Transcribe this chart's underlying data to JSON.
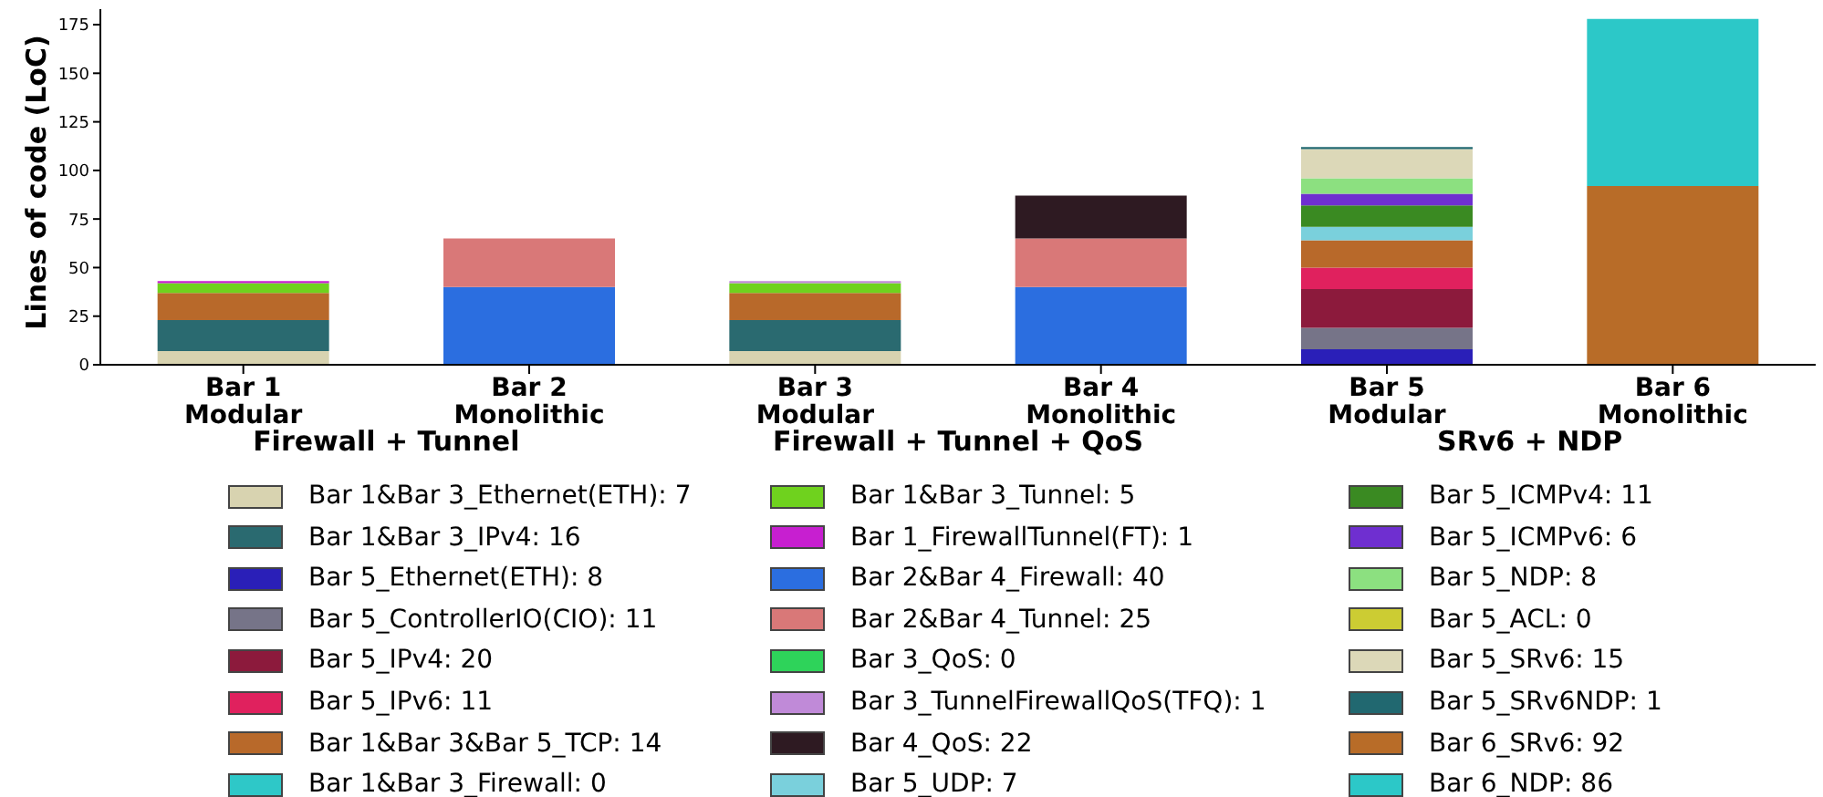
{
  "chart_data": {
    "type": "bar",
    "stacked": true,
    "ylabel": "Lines of code (LoC)",
    "categories": [
      "Bar 1\nModular",
      "Bar 2\nMonolithic",
      "Bar 3\nModular",
      "Bar 4\nMonolithic",
      "Bar 5\nModular",
      "Bar 6\nMonolithic"
    ],
    "annotations": [
      "Firewall + Tunnel",
      "Firewall + Tunnel + QoS",
      "SRv6 + NDP"
    ],
    "ylim": [
      0,
      183
    ],
    "yticks": [
      0,
      25,
      50,
      75,
      100,
      125,
      150,
      175
    ],
    "grid": false,
    "legend": "bottom",
    "series": [
      {
        "name": "Bar 1&Bar 3_Ethernet(ETH): 7",
        "color": "#d8d3b0",
        "values": [
          7,
          null,
          7,
          null,
          null,
          null
        ]
      },
      {
        "name": "Bar 1&Bar 3_IPv4: 16",
        "color": "#2a6a70",
        "values": [
          16,
          null,
          16,
          null,
          null,
          null
        ]
      },
      {
        "name": "Bar 5_Ethernet(ETH): 8",
        "color": "#2a1fb8",
        "values": [
          null,
          null,
          null,
          null,
          8,
          null
        ]
      },
      {
        "name": "Bar 5_ControllerIO(CIO): 11",
        "color": "#767488",
        "values": [
          null,
          null,
          null,
          null,
          11,
          null
        ]
      },
      {
        "name": "Bar 5_IPv4: 20",
        "color": "#8c1a3c",
        "values": [
          null,
          null,
          null,
          null,
          20,
          null
        ]
      },
      {
        "name": "Bar 5_IPv6: 11",
        "color": "#e0215e",
        "values": [
          null,
          null,
          null,
          null,
          11,
          null
        ]
      },
      {
        "name": "Bar 1&Bar 3&Bar 5_TCP: 14",
        "color": "#b8692a",
        "values": [
          14,
          null,
          14,
          null,
          14,
          null
        ]
      },
      {
        "name": "Bar 1&Bar 3_Firewall: 0",
        "color": "#2ec8c8",
        "values": [
          0,
          null,
          0,
          null,
          null,
          null
        ]
      },
      {
        "name": "Bar 1&Bar 3_Tunnel: 5",
        "color": "#6fd21e",
        "values": [
          5,
          null,
          5,
          null,
          null,
          null
        ]
      },
      {
        "name": "Bar 1_FirewallTunnel(FT): 1",
        "color": "#c71fd0",
        "values": [
          1,
          null,
          null,
          null,
          null,
          null
        ]
      },
      {
        "name": "Bar 2&Bar 4_Firewall: 40",
        "color": "#2b6ee0",
        "values": [
          null,
          40,
          null,
          40,
          null,
          null
        ]
      },
      {
        "name": "Bar 2&Bar 4_Tunnel: 25",
        "color": "#d97878",
        "values": [
          null,
          25,
          null,
          25,
          null,
          null
        ]
      },
      {
        "name": "Bar 3_QoS: 0",
        "color": "#2ed35a",
        "values": [
          null,
          null,
          0,
          null,
          null,
          null
        ]
      },
      {
        "name": "Bar 3_TunnelFirewallQoS(TFQ): 1",
        "color": "#c08ad8",
        "values": [
          null,
          null,
          1,
          null,
          null,
          null
        ]
      },
      {
        "name": "Bar 4_QoS: 22",
        "color": "#2e1a22",
        "values": [
          null,
          null,
          null,
          22,
          null,
          null
        ]
      },
      {
        "name": "Bar 5_UDP: 7",
        "color": "#7ad0dc",
        "values": [
          null,
          null,
          null,
          null,
          7,
          null
        ]
      },
      {
        "name": "Bar 5_ICMPv4: 11",
        "color": "#3a8a22",
        "values": [
          null,
          null,
          null,
          null,
          11,
          null
        ]
      },
      {
        "name": "Bar 5_ICMPv6: 6",
        "color": "#6f2fd0",
        "values": [
          null,
          null,
          null,
          null,
          6,
          null
        ]
      },
      {
        "name": "Bar 5_NDP: 8",
        "color": "#8ce080",
        "values": [
          null,
          null,
          null,
          null,
          8,
          null
        ]
      },
      {
        "name": "Bar 5_ACL: 0",
        "color": "#cccc33",
        "values": [
          null,
          null,
          null,
          null,
          0,
          null
        ]
      },
      {
        "name": "Bar 5_SRv6: 15",
        "color": "#dcd8b8",
        "values": [
          null,
          null,
          null,
          null,
          15,
          null
        ]
      },
      {
        "name": "Bar 5_SRv6NDP: 1",
        "color": "#216870",
        "values": [
          null,
          null,
          null,
          null,
          1,
          null
        ]
      },
      {
        "name": "Bar 6_SRv6: 92",
        "color": "#b86c28",
        "values": [
          null,
          null,
          null,
          null,
          null,
          92
        ]
      },
      {
        "name": "Bar 6_NDP: 86",
        "color": "#2cc8c8",
        "values": [
          null,
          null,
          null,
          null,
          null,
          86
        ]
      }
    ]
  }
}
